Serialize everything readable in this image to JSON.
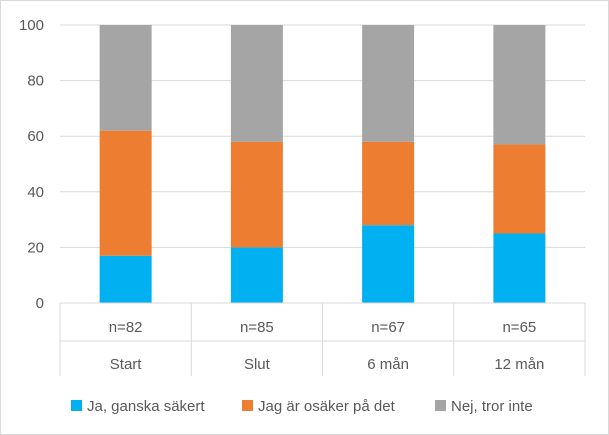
{
  "chart_data": {
    "type": "bar",
    "stacked": true,
    "categories": [
      {
        "n": "n=82",
        "label": "Start"
      },
      {
        "n": "n=85",
        "label": "Slut"
      },
      {
        "n": "n=67",
        "label": "6 mån"
      },
      {
        "n": "n=65",
        "label": "12 mån"
      }
    ],
    "series": [
      {
        "name": "Ja, ganska säkert",
        "color": "#00b0f0",
        "values": [
          17,
          20,
          28,
          25
        ]
      },
      {
        "name": "Jag är osäker på det",
        "color": "#ed7d31",
        "values": [
          45,
          38,
          30,
          32
        ]
      },
      {
        "name": "Nej, tror inte",
        "color": "#a5a5a5",
        "values": [
          38,
          42,
          42,
          43
        ]
      }
    ],
    "ylim": [
      0,
      100
    ],
    "yticks": [
      0,
      20,
      40,
      60,
      80,
      100
    ],
    "grid": true,
    "legend": "bottom"
  }
}
